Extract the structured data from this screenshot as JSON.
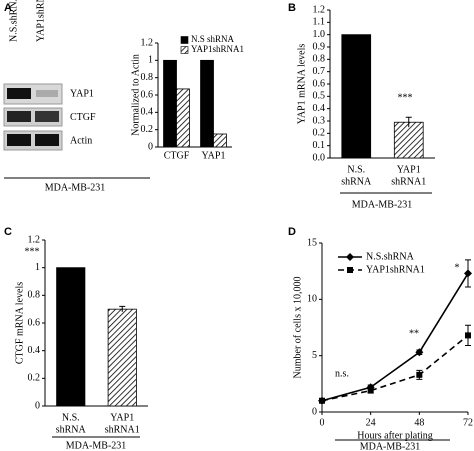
{
  "chart_data": [
    {
      "type": "bar",
      "panel_label": "A",
      "blot": {
        "lanes": [
          "N.S.shRNA",
          "YAP1shRNA1"
        ],
        "bands": [
          "YAP1",
          "CTGF",
          "Actin"
        ]
      },
      "categories": [
        [
          "CTGF"
        ],
        [
          "YAP1"
        ]
      ],
      "series": [
        {
          "name": "N.S shRNA",
          "color": "#000000",
          "values": [
            1,
            1
          ]
        },
        {
          "name": "YAP1shRNA1",
          "color": "#000000",
          "pattern": "diagonal-hatch",
          "values": [
            0.67,
            0.15
          ]
        }
      ],
      "ylabel": "Normalized to Actin",
      "ylim": [
        0,
        1.2
      ],
      "yticks": [
        0,
        0.2,
        0.4,
        0.6,
        0.8,
        1,
        1.2
      ],
      "subtitle": "MDA-MB-231",
      "legend": "top"
    },
    {
      "type": "bar",
      "panel_label": "B",
      "categories": [
        [
          "N.S.",
          "shRNA"
        ],
        [
          "YAP1",
          "shRNA1"
        ]
      ],
      "series": [
        {
          "name": null,
          "colors": [
            "#000000",
            "#000000"
          ],
          "patterns": [
            "solid",
            "diagonal-hatch"
          ],
          "values": [
            1,
            0.29
          ],
          "errors": [
            0,
            0.04
          ]
        }
      ],
      "ylabel": "YAP1 mRNA levels",
      "ylim": [
        0,
        1.2
      ],
      "yticks": [
        {
          "value": 0,
          "label": "0.0"
        },
        0.1,
        0.2,
        0.3,
        0.4,
        0.5,
        0.6,
        0.7,
        0.8,
        0.9,
        {
          "value": 1,
          "label": "1.0"
        },
        1.1,
        1.2
      ],
      "annotations": [
        "***"
      ],
      "subtitle": "MDA-MB-231"
    },
    {
      "type": "bar",
      "panel_label": "C",
      "categories": [
        [
          "N.S.",
          "shRNA"
        ],
        [
          "YAP1",
          "shRNA1"
        ]
      ],
      "series": [
        {
          "name": null,
          "colors": [
            "#000000",
            "#000000"
          ],
          "patterns": [
            "solid",
            "diagonal-hatch"
          ],
          "values": [
            1,
            0.7
          ],
          "errors": [
            0,
            0.02
          ]
        }
      ],
      "ylabel": "CTGF mRNA levels",
      "ylim": [
        0,
        1.2
      ],
      "yticks": [
        0,
        0.2,
        0.4,
        0.6,
        0.8,
        1,
        1.2
      ],
      "annotations": [
        "***"
      ],
      "subtitle": "MDA-MB-231"
    },
    {
      "type": "line",
      "panel_label": "D",
      "x": [
        0,
        24,
        48,
        72
      ],
      "series": [
        {
          "name": "N.S.shRNA",
          "color": "#000000",
          "dash": "solid",
          "marker": "diamond",
          "values": [
            1,
            2.2,
            5.3,
            12.3
          ],
          "errors": [
            0,
            0.2,
            0.2,
            1.2
          ]
        },
        {
          "name": "YAP1shRNA1",
          "color": "#000000",
          "dash": "dashed",
          "marker": "square",
          "values": [
            1,
            1.9,
            3.3,
            6.8
          ],
          "errors": [
            0,
            0.2,
            0.4,
            0.9
          ]
        }
      ],
      "xlabel": "Hours after plating",
      "ylabel": "Number of cells x 10,000",
      "xlim": [
        0,
        72
      ],
      "xticks": [
        0,
        24,
        48,
        72
      ],
      "ylim": [
        0,
        15
      ],
      "yticks": [
        0,
        5,
        10,
        15
      ],
      "annotations": [
        "n.s.",
        "**",
        "*"
      ],
      "subtitle": "MDA-MB-231",
      "legend": "top-left"
    }
  ]
}
